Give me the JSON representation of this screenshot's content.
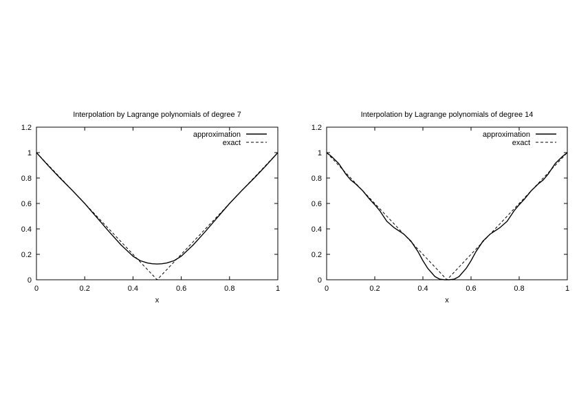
{
  "chart_data": [
    {
      "type": "line",
      "title": "Interpolation by Lagrange polynomials of degree 7",
      "xlabel": "x",
      "ylabel": "",
      "xlim": [
        0,
        1
      ],
      "ylim": [
        0,
        1.2
      ],
      "xticks": [
        "0",
        "0.2",
        "0.4",
        "0.6",
        "0.8",
        "1"
      ],
      "yticks": [
        "0",
        "0.2",
        "0.4",
        "0.6",
        "0.8",
        "1",
        "1.2"
      ],
      "grid": false,
      "legend_position": "top-right",
      "series": [
        {
          "name": "approximation",
          "style": "solid",
          "x": [
            0,
            0.05,
            0.1,
            0.15,
            0.2,
            0.25,
            0.3,
            0.35,
            0.4,
            0.43,
            0.46,
            0.48,
            0.5,
            0.52,
            0.54,
            0.57,
            0.6,
            0.65,
            0.7,
            0.75,
            0.8,
            0.85,
            0.9,
            0.95,
            1
          ],
          "y": [
            1,
            0.895,
            0.795,
            0.7,
            0.6,
            0.49,
            0.38,
            0.275,
            0.185,
            0.15,
            0.132,
            0.126,
            0.124,
            0.126,
            0.132,
            0.15,
            0.185,
            0.275,
            0.38,
            0.49,
            0.6,
            0.7,
            0.795,
            0.895,
            1
          ]
        },
        {
          "name": "exact",
          "style": "dashed",
          "x": [
            0,
            0.1,
            0.2,
            0.3,
            0.4,
            0.5,
            0.6,
            0.7,
            0.8,
            0.9,
            1
          ],
          "y": [
            1,
            0.8,
            0.6,
            0.4,
            0.2,
            0,
            0.2,
            0.4,
            0.6,
            0.8,
            1
          ]
        }
      ]
    },
    {
      "type": "line",
      "title": "Interpolation by Lagrange polynomials of degree 14",
      "xlabel": "x",
      "ylabel": "",
      "xlim": [
        0,
        1
      ],
      "ylim": [
        0,
        1.2
      ],
      "xticks": [
        "0",
        "0.2",
        "0.4",
        "0.6",
        "0.8",
        "1"
      ],
      "yticks": [
        "0",
        "0.2",
        "0.4",
        "0.6",
        "0.8",
        "1",
        "1.2"
      ],
      "grid": false,
      "legend_position": "top-right",
      "series": [
        {
          "name": "approximation",
          "style": "solid",
          "x": [
            0,
            0.02,
            0.05,
            0.08,
            0.1,
            0.12,
            0.15,
            0.18,
            0.2,
            0.22,
            0.25,
            0.28,
            0.3,
            0.32,
            0.35,
            0.38,
            0.4,
            0.42,
            0.45,
            0.47,
            0.49,
            0.5,
            0.51,
            0.53,
            0.55,
            0.58,
            0.6,
            0.62,
            0.65,
            0.68,
            0.7,
            0.72,
            0.75,
            0.78,
            0.8,
            0.82,
            0.85,
            0.88,
            0.9,
            0.92,
            0.95,
            0.98,
            1
          ],
          "y": [
            1,
            0.97,
            0.915,
            0.83,
            0.785,
            0.755,
            0.7,
            0.63,
            0.59,
            0.545,
            0.46,
            0.41,
            0.385,
            0.36,
            0.305,
            0.22,
            0.15,
            0.09,
            0.025,
            0.005,
            0.0,
            0.0,
            0.0,
            0.005,
            0.025,
            0.09,
            0.15,
            0.22,
            0.305,
            0.36,
            0.385,
            0.41,
            0.46,
            0.545,
            0.59,
            0.63,
            0.7,
            0.755,
            0.785,
            0.83,
            0.915,
            0.97,
            1
          ]
        },
        {
          "name": "exact",
          "style": "dashed",
          "x": [
            0,
            0.1,
            0.2,
            0.3,
            0.4,
            0.5,
            0.6,
            0.7,
            0.8,
            0.9,
            1
          ],
          "y": [
            1,
            0.8,
            0.6,
            0.4,
            0.2,
            0,
            0.2,
            0.4,
            0.6,
            0.8,
            1
          ]
        }
      ]
    }
  ]
}
